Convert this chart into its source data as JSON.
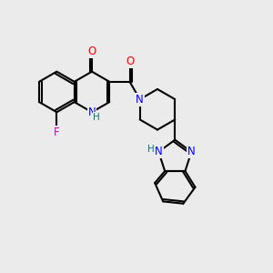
{
  "bg_color": "#ebebeb",
  "bond_color": "#000000",
  "bond_width": 1.5,
  "atom_colors": {
    "N": "#0000ff",
    "O": "#ff0000",
    "F": "#cc00cc",
    "H": "#008080",
    "C": "#000000"
  },
  "font_size": 8.5
}
